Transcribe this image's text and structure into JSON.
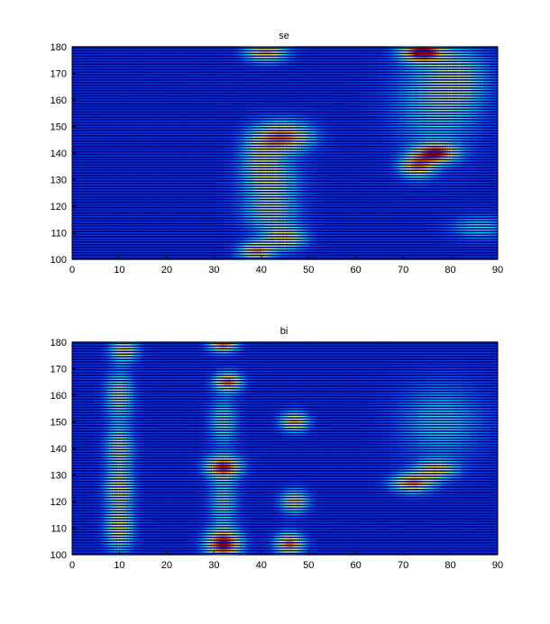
{
  "colors": {
    "background": "#ffffff",
    "plot_background": "#000080",
    "colormap": [
      "#00008f",
      "#0050ff",
      "#00e0ff",
      "#b0ffb0",
      "#ffff40",
      "#ff8c00",
      "#c00000"
    ]
  },
  "chart_data": [
    {
      "type": "heatmap",
      "title": "se",
      "xlabel": "",
      "ylabel": "",
      "xlim": [
        0,
        90
      ],
      "ylim": [
        100,
        180
      ],
      "xticks": [
        0,
        10,
        20,
        30,
        40,
        50,
        60,
        70,
        80,
        90
      ],
      "yticks": [
        100,
        110,
        120,
        130,
        140,
        150,
        160,
        170,
        180
      ],
      "grid": false,
      "legend": "none",
      "row_step": 1,
      "hotspots": [
        {
          "x": 41,
          "y": 178,
          "sx": 3,
          "sy": 2.5,
          "a": 0.7
        },
        {
          "x": 39,
          "y": 103,
          "sx": 2.5,
          "sy": 2.5,
          "a": 0.7
        },
        {
          "x": 45,
          "y": 108,
          "sx": 3,
          "sy": 3,
          "a": 0.6
        },
        {
          "x": 42,
          "y": 118,
          "sx": 4,
          "sy": 5,
          "a": 0.45
        },
        {
          "x": 42,
          "y": 130,
          "sx": 4,
          "sy": 5,
          "a": 0.45
        },
        {
          "x": 45,
          "y": 146,
          "sx": 4,
          "sy": 4,
          "a": 0.75
        },
        {
          "x": 40,
          "y": 140,
          "sx": 3,
          "sy": 6,
          "a": 0.4
        },
        {
          "x": 74,
          "y": 178,
          "sx": 3,
          "sy": 2.5,
          "a": 0.95
        },
        {
          "x": 73,
          "y": 135,
          "sx": 2.5,
          "sy": 3,
          "a": 0.7
        },
        {
          "x": 77,
          "y": 140,
          "sx": 3,
          "sy": 2.5,
          "a": 0.85
        },
        {
          "x": 77,
          "y": 160,
          "sx": 6,
          "sy": 14,
          "a": 0.35
        },
        {
          "x": 82,
          "y": 168,
          "sx": 4,
          "sy": 8,
          "a": 0.3
        },
        {
          "x": 86,
          "y": 112,
          "sx": 4,
          "sy": 3,
          "a": 0.3
        }
      ]
    },
    {
      "type": "heatmap",
      "title": "bi",
      "xlabel": "",
      "ylabel": "",
      "xlim": [
        0,
        90
      ],
      "ylim": [
        100,
        180
      ],
      "xticks": [
        0,
        10,
        20,
        30,
        40,
        50,
        60,
        70,
        80,
        90
      ],
      "yticks": [
        100,
        110,
        120,
        130,
        140,
        150,
        160,
        170,
        180
      ],
      "grid": false,
      "legend": "none",
      "row_step": 1,
      "hotspots": [
        {
          "x": 10,
          "y": 110,
          "sx": 2,
          "sy": 6,
          "a": 0.6
        },
        {
          "x": 10,
          "y": 125,
          "sx": 2,
          "sy": 5,
          "a": 0.55
        },
        {
          "x": 10,
          "y": 140,
          "sx": 2,
          "sy": 6,
          "a": 0.5
        },
        {
          "x": 10,
          "y": 160,
          "sx": 2,
          "sy": 6,
          "a": 0.5
        },
        {
          "x": 11,
          "y": 177,
          "sx": 2,
          "sy": 3,
          "a": 0.6
        },
        {
          "x": 32,
          "y": 104,
          "sx": 2.5,
          "sy": 4,
          "a": 1.0
        },
        {
          "x": 32,
          "y": 133,
          "sx": 2.5,
          "sy": 3,
          "a": 0.9
        },
        {
          "x": 33,
          "y": 165,
          "sx": 2,
          "sy": 2.5,
          "a": 0.8
        },
        {
          "x": 32,
          "y": 179,
          "sx": 2,
          "sy": 2,
          "a": 0.8
        },
        {
          "x": 32,
          "y": 120,
          "sx": 2,
          "sy": 6,
          "a": 0.4
        },
        {
          "x": 32,
          "y": 150,
          "sx": 2,
          "sy": 6,
          "a": 0.4
        },
        {
          "x": 46,
          "y": 104,
          "sx": 2,
          "sy": 3,
          "a": 0.8
        },
        {
          "x": 47,
          "y": 120,
          "sx": 2,
          "sy": 3,
          "a": 0.6
        },
        {
          "x": 47,
          "y": 150,
          "sx": 2,
          "sy": 2.5,
          "a": 0.7
        },
        {
          "x": 72,
          "y": 127,
          "sx": 3,
          "sy": 2.5,
          "a": 0.75
        },
        {
          "x": 77,
          "y": 132,
          "sx": 3,
          "sy": 2.5,
          "a": 0.55
        },
        {
          "x": 78,
          "y": 150,
          "sx": 6,
          "sy": 10,
          "a": 0.3
        }
      ]
    }
  ]
}
